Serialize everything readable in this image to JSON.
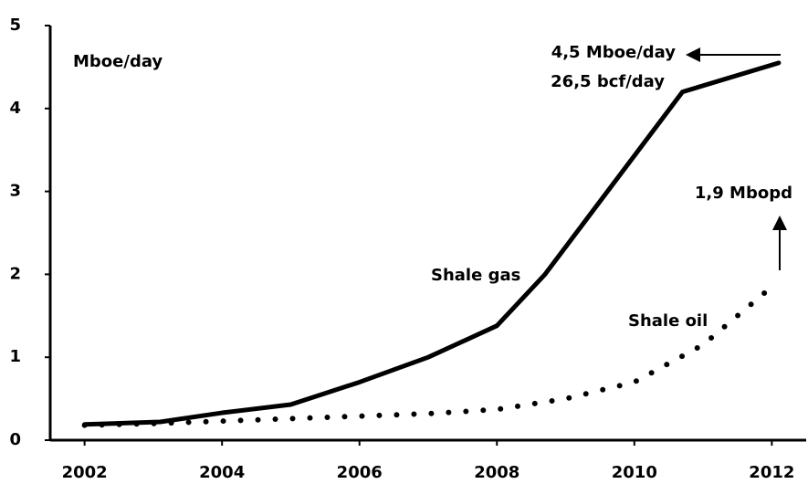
{
  "chart_data": {
    "type": "line",
    "y_label": "Mboe/day",
    "annotations": [
      "4,5 Mboe/day",
      "26,5 bcf/day",
      "1,9 Mbopd"
    ],
    "series": [
      {
        "name": "Shale gas",
        "color": "#000000",
        "style": "solid",
        "x": [
          2002,
          2003.1,
          2004,
          2005,
          2006,
          2007,
          2008,
          2008.7,
          2009.7,
          2010.7,
          2012.1
        ],
        "values": [
          0.19,
          0.22,
          0.33,
          0.43,
          0.7,
          1.0,
          1.38,
          2.0,
          3.1,
          4.2,
          4.55
        ]
      },
      {
        "name": "Shale oil",
        "color": "#000000",
        "style": "dotted",
        "x": [
          2002,
          2003,
          2004,
          2005,
          2006,
          2007,
          2008,
          2009,
          2010,
          2011,
          2012
        ],
        "values": [
          0.18,
          0.2,
          0.23,
          0.26,
          0.29,
          0.32,
          0.37,
          0.5,
          0.7,
          1.15,
          1.85
        ]
      }
    ],
    "xlim": [
      2001.5,
      2012.5
    ],
    "xticks": [
      2002,
      2004,
      2006,
      2008,
      2010,
      2012
    ],
    "ylim": [
      0,
      5
    ],
    "yticks": [
      0,
      1,
      2,
      3,
      4,
      5
    ],
    "grid": false
  }
}
